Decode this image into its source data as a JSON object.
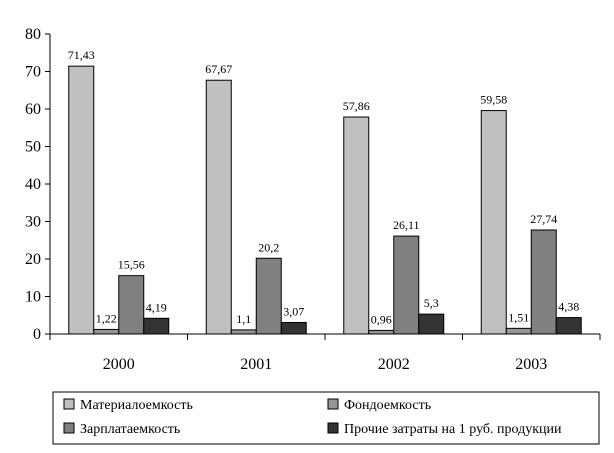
{
  "chart_data": {
    "type": "bar",
    "categories": [
      "2000",
      "2001",
      "2002",
      "2003"
    ],
    "ylim": [
      0,
      80
    ],
    "yticks": [
      0,
      10,
      20,
      30,
      40,
      50,
      60,
      70,
      80
    ],
    "grid": false,
    "legend_position": "bottom",
    "series": [
      {
        "name": "Материалоемкость",
        "color": "#c0c0c0",
        "values": [
          71.43,
          67.67,
          57.86,
          59.58
        ],
        "labels": [
          "71,43",
          "67,67",
          "57,86",
          "59,58"
        ]
      },
      {
        "name": "Фондоемкость",
        "color": "#969696",
        "values": [
          1.22,
          1.1,
          0.96,
          1.51
        ],
        "labels": [
          "1,22",
          "1,1",
          "0,96",
          "1,51"
        ]
      },
      {
        "name": "Зарплатаемкость",
        "color": "#808080",
        "values": [
          15.56,
          20.2,
          26.11,
          27.74
        ],
        "labels": [
          "15,56",
          "20,2",
          "26,11",
          "27,74"
        ]
      },
      {
        "name": "Прочие затраты на 1 руб. продукции",
        "color": "#333333",
        "values": [
          4.19,
          3.07,
          5.3,
          4.38
        ],
        "labels": [
          "4,19",
          "3,07",
          "5,3",
          "4,38"
        ]
      }
    ]
  }
}
